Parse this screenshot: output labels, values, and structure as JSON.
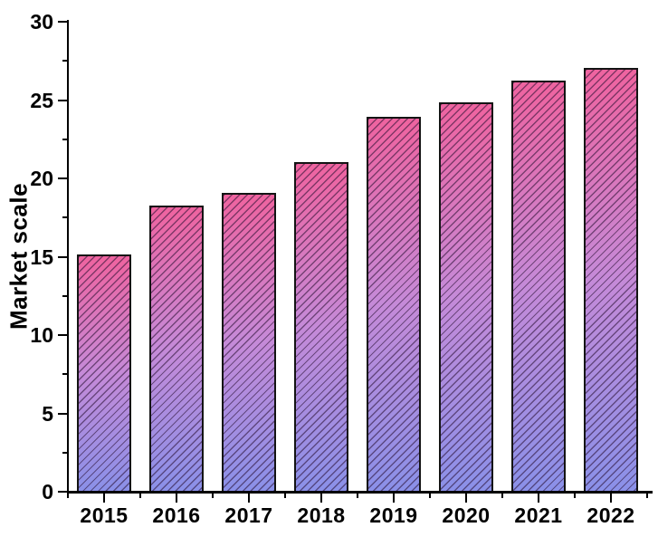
{
  "chart_data": {
    "type": "bar",
    "categories": [
      "2015",
      "2016",
      "2017",
      "2018",
      "2019",
      "2020",
      "2021",
      "2022"
    ],
    "values": [
      15.1,
      18.2,
      19,
      21,
      23.9,
      24.8,
      26.2,
      27
    ],
    "title": "",
    "xlabel": "",
    "ylabel": "Market scale",
    "ylim": [
      0,
      30
    ],
    "y_major_ticks": [
      0,
      5,
      10,
      15,
      20,
      25,
      30
    ],
    "y_minor_ticks": [
      2.5,
      7.5,
      12.5,
      17.5,
      22.5,
      27.5
    ],
    "grid": false,
    "legend": false,
    "spines": [
      "left",
      "bottom"
    ],
    "tick_direction": "out",
    "style": {
      "bar_gradient_top": "#ef639f",
      "bar_gradient_mid": "#c58ad8",
      "bar_gradient_bottom": "#8a90e8",
      "bar_hatch": "diagonal-forward-slash",
      "bar_hatch_color": "rgba(40,15,50,0.55)",
      "bar_border_color": "#141414",
      "axis_color": "#000000",
      "text_color": "#000000",
      "background": "#ffffff"
    }
  }
}
